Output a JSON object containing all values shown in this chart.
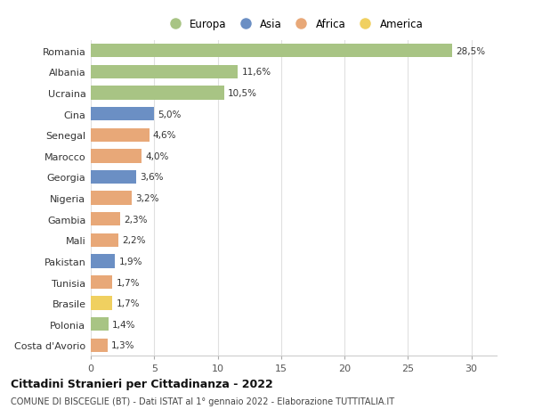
{
  "countries": [
    "Romania",
    "Albania",
    "Ucraina",
    "Cina",
    "Senegal",
    "Marocco",
    "Georgia",
    "Nigeria",
    "Gambia",
    "Mali",
    "Pakistan",
    "Tunisia",
    "Brasile",
    "Polonia",
    "Costa d'Avorio"
  ],
  "values": [
    28.5,
    11.6,
    10.5,
    5.0,
    4.6,
    4.0,
    3.6,
    3.2,
    2.3,
    2.2,
    1.9,
    1.7,
    1.7,
    1.4,
    1.3
  ],
  "labels": [
    "28,5%",
    "11,6%",
    "10,5%",
    "5,0%",
    "4,6%",
    "4,0%",
    "3,6%",
    "3,2%",
    "2,3%",
    "2,2%",
    "1,9%",
    "1,7%",
    "1,7%",
    "1,4%",
    "1,3%"
  ],
  "continents": [
    "Europa",
    "Europa",
    "Europa",
    "Asia",
    "Africa",
    "Africa",
    "Asia",
    "Africa",
    "Africa",
    "Africa",
    "Asia",
    "Africa",
    "America",
    "Europa",
    "Africa"
  ],
  "colors": {
    "Europa": "#a8c484",
    "Asia": "#6b8fc4",
    "Africa": "#e8a878",
    "America": "#f0d060"
  },
  "xlim": [
    0,
    32
  ],
  "xticks": [
    0,
    5,
    10,
    15,
    20,
    25,
    30
  ],
  "title": "Cittadini Stranieri per Cittadinanza - 2022",
  "subtitle": "COMUNE DI BISCEGLIE (BT) - Dati ISTAT al 1° gennaio 2022 - Elaborazione TUTTITALIA.IT",
  "bg_color": "#ffffff",
  "grid_color": "#e0e0e0",
  "bar_height": 0.65
}
